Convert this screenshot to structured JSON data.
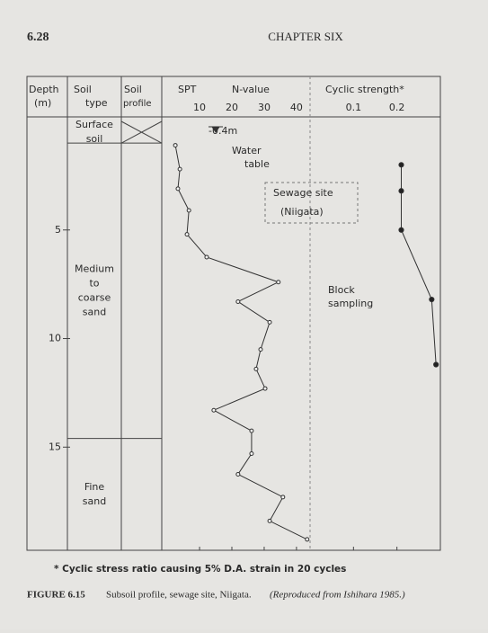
{
  "page": {
    "number": "6.28",
    "running_head": "CHAPTER SIX"
  },
  "chart_data": {
    "type": "line",
    "headers": {
      "depth": [
        "Depth",
        "(m)"
      ],
      "soil_type": [
        "Soil",
        "type"
      ],
      "soil_profile": [
        "Soil",
        "profile"
      ],
      "spt": "SPT",
      "n_value": "N-value",
      "cyclic": "Cyclic strength*"
    },
    "ylim": [
      0,
      19.75
    ],
    "yticks": [
      5,
      10,
      15
    ],
    "xlim": [
      -1.7,
      44.2
    ],
    "xticks": [
      10,
      20,
      30,
      40
    ],
    "x2lim": [
      0,
      0.3
    ],
    "x2ticks": [
      0.1,
      0.2
    ],
    "layers": [
      {
        "label": [
          "Surface",
          "soil"
        ],
        "bottom": 1.0
      },
      {
        "label": [
          "Medium",
          "to",
          "coarse",
          "sand"
        ],
        "bottom": 14.6
      },
      {
        "label": [
          "Fine",
          "sand"
        ]
      }
    ],
    "spt": {
      "n": [
        2.5,
        3.9,
        3.3,
        6.7,
        6.1,
        12.2,
        34.4,
        21.9,
        31.7,
        28.9,
        27.5,
        30.3,
        14.4,
        26.1,
        26.1,
        21.9,
        35.8,
        31.7,
        43.3
      ],
      "depth": [
        1.1,
        2.2,
        3.1,
        4.1,
        5.2,
        6.25,
        7.4,
        8.3,
        9.25,
        10.5,
        11.4,
        12.3,
        13.3,
        14.25,
        15.3,
        16.25,
        17.3,
        18.4,
        19.25
      ]
    },
    "cyclic_strength": {
      "values": [
        0.21,
        0.21,
        0.21,
        0.28,
        0.29
      ],
      "depth": [
        2.0,
        3.2,
        5.0,
        8.2,
        11.2
      ]
    },
    "annotations": {
      "water_level": "-0.4m",
      "water_table": [
        "Water",
        "table"
      ],
      "site": [
        "Sewage site",
        "(Niigata)"
      ],
      "sampling": [
        "Block",
        "sampling"
      ]
    },
    "footnote": "* Cyclic stress ratio causing 5% D.A. strain in 20 cycles"
  },
  "caption": {
    "label": "FIGURE 6.15",
    "text": "Subsoil profile, sewage site, Niigata.",
    "source": "(Reproduced from Ishihara 1985.)"
  }
}
